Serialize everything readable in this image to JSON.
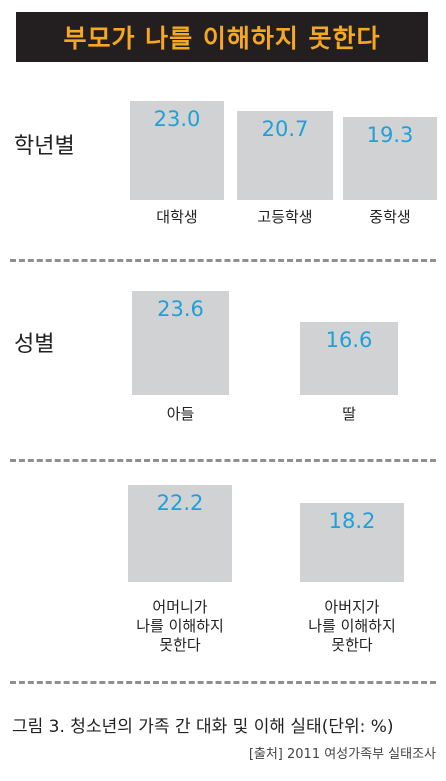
{
  "title": "부모가 나를 이해하지 못한다",
  "caption": "그림 3. 청소년의 가족 간 대화 및 이해 실태(단위: %)",
  "source": "[출처] 2011 여성가족부 실태조사",
  "colors": {
    "title_bg": "#231f20",
    "title_text": "#f6a821",
    "bar": "#d1d2d4",
    "value_text": "#1ea0d8",
    "divider": "#8e8f91"
  },
  "chart_data": [
    {
      "type": "bar",
      "group_label": "학년별",
      "categories": [
        "대학생",
        "고등학생",
        "중학생"
      ],
      "values": [
        23.0,
        20.7,
        19.3
      ],
      "value_labels": [
        "23.0",
        "20.7",
        "19.3"
      ]
    },
    {
      "type": "bar",
      "group_label": "성별",
      "categories": [
        "아들",
        "딸"
      ],
      "values": [
        23.6,
        16.6
      ],
      "value_labels": [
        "23.6",
        "16.6"
      ]
    },
    {
      "type": "bar",
      "group_label": "",
      "categories": [
        "어머니가\n나를 이해하지\n못한다",
        "아버지가\n나를 이해하지\n못한다"
      ],
      "values": [
        22.2,
        18.2
      ],
      "value_labels": [
        "22.2",
        "18.2"
      ]
    }
  ]
}
